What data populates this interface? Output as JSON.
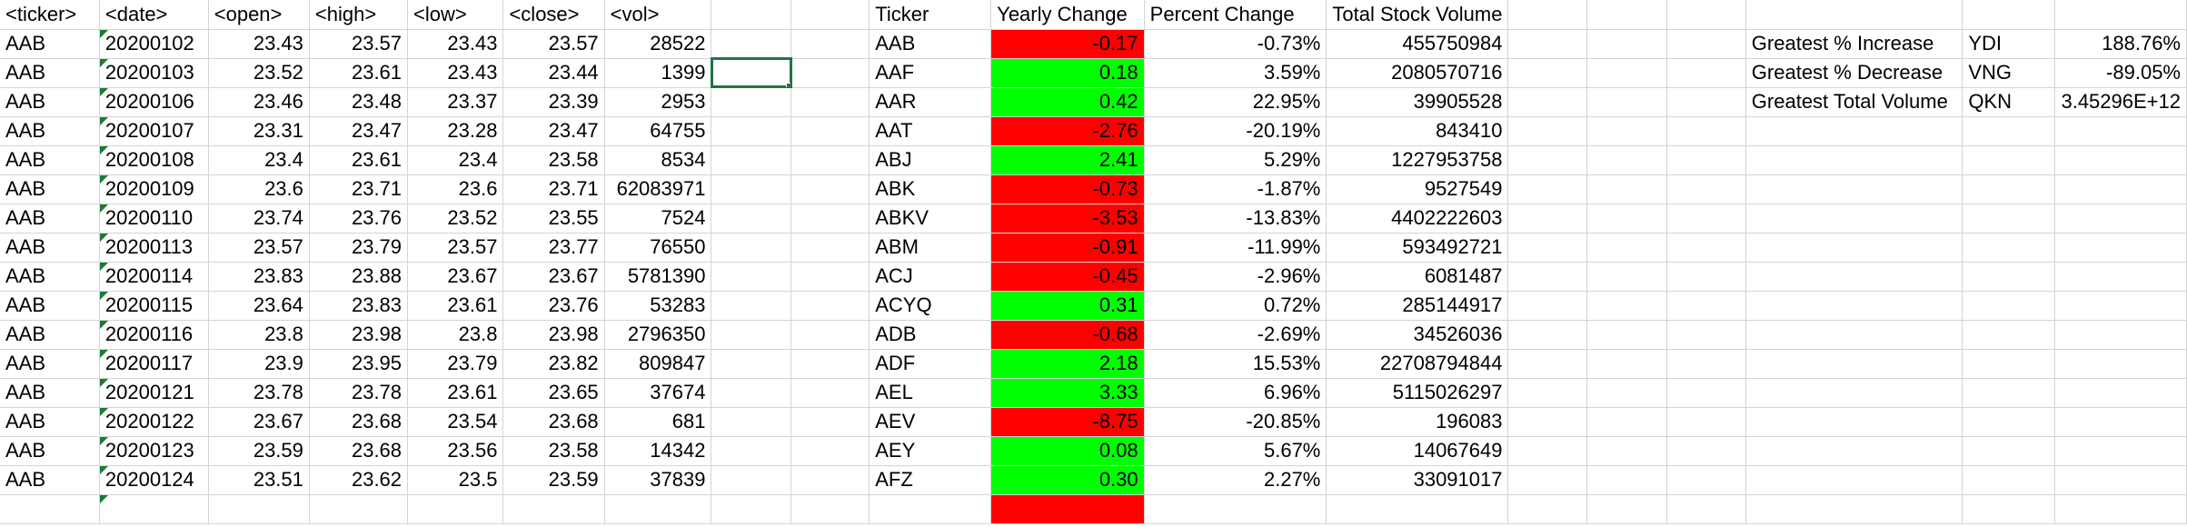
{
  "sheet": {
    "raw_headers": [
      "<ticker>",
      "<date>",
      "<open>",
      "<high>",
      "<low>",
      "<close>",
      "<vol>"
    ],
    "summary_headers": [
      "Ticker",
      "Yearly Change",
      "Percent Change",
      "Total Stock Volume"
    ],
    "rows": [
      {
        "raw": [
          "AAB",
          "20200102",
          "23.43",
          "23.57",
          "23.43",
          "23.57",
          "28522"
        ],
        "summary": [
          "AAB",
          "-0.17",
          "-0.73%",
          "455750984"
        ],
        "change_status": "negative"
      },
      {
        "raw": [
          "AAB",
          "20200103",
          "23.52",
          "23.61",
          "23.43",
          "23.44",
          "1399"
        ],
        "summary": [
          "AAF",
          "0.18",
          "3.59%",
          "2080570716"
        ],
        "change_status": "positive"
      },
      {
        "raw": [
          "AAB",
          "20200106",
          "23.46",
          "23.48",
          "23.37",
          "23.39",
          "2953"
        ],
        "summary": [
          "AAR",
          "0.42",
          "22.95%",
          "39905528"
        ],
        "change_status": "positive"
      },
      {
        "raw": [
          "AAB",
          "20200107",
          "23.31",
          "23.47",
          "23.28",
          "23.47",
          "64755"
        ],
        "summary": [
          "AAT",
          "-2.76",
          "-20.19%",
          "843410"
        ],
        "change_status": "negative"
      },
      {
        "raw": [
          "AAB",
          "20200108",
          "23.4",
          "23.61",
          "23.4",
          "23.58",
          "8534"
        ],
        "summary": [
          "ABJ",
          "2.41",
          "5.29%",
          "1227953758"
        ],
        "change_status": "positive"
      },
      {
        "raw": [
          "AAB",
          "20200109",
          "23.6",
          "23.71",
          "23.6",
          "23.71",
          "62083971"
        ],
        "summary": [
          "ABK",
          "-0.73",
          "-1.87%",
          "9527549"
        ],
        "change_status": "negative"
      },
      {
        "raw": [
          "AAB",
          "20200110",
          "23.74",
          "23.76",
          "23.52",
          "23.55",
          "7524"
        ],
        "summary": [
          "ABKV",
          "-3.53",
          "-13.83%",
          "4402222603"
        ],
        "change_status": "negative"
      },
      {
        "raw": [
          "AAB",
          "20200113",
          "23.57",
          "23.79",
          "23.57",
          "23.77",
          "76550"
        ],
        "summary": [
          "ABM",
          "-0.91",
          "-11.99%",
          "593492721"
        ],
        "change_status": "negative"
      },
      {
        "raw": [
          "AAB",
          "20200114",
          "23.83",
          "23.88",
          "23.67",
          "23.67",
          "5781390"
        ],
        "summary": [
          "ACJ",
          "-0.45",
          "-2.96%",
          "6081487"
        ],
        "change_status": "negative"
      },
      {
        "raw": [
          "AAB",
          "20200115",
          "23.64",
          "23.83",
          "23.61",
          "23.76",
          "53283"
        ],
        "summary": [
          "ACYQ",
          "0.31",
          "0.72%",
          "285144917"
        ],
        "change_status": "positive"
      },
      {
        "raw": [
          "AAB",
          "20200116",
          "23.8",
          "23.98",
          "23.8",
          "23.98",
          "2796350"
        ],
        "summary": [
          "ADB",
          "-0.68",
          "-2.69%",
          "34526036"
        ],
        "change_status": "negative"
      },
      {
        "raw": [
          "AAB",
          "20200117",
          "23.9",
          "23.95",
          "23.79",
          "23.82",
          "809847"
        ],
        "summary": [
          "ADF",
          "2.18",
          "15.53%",
          "22708794844"
        ],
        "change_status": "positive"
      },
      {
        "raw": [
          "AAB",
          "20200121",
          "23.78",
          "23.78",
          "23.61",
          "23.65",
          "37674"
        ],
        "summary": [
          "AEL",
          "3.33",
          "6.96%",
          "5115026297"
        ],
        "change_status": "positive"
      },
      {
        "raw": [
          "AAB",
          "20200122",
          "23.67",
          "23.68",
          "23.54",
          "23.68",
          "681"
        ],
        "summary": [
          "AEV",
          "-8.75",
          "-20.85%",
          "196083"
        ],
        "change_status": "negative"
      },
      {
        "raw": [
          "AAB",
          "20200123",
          "23.59",
          "23.68",
          "23.56",
          "23.58",
          "14342"
        ],
        "summary": [
          "AEY",
          "0.08",
          "5.67%",
          "14067649"
        ],
        "change_status": "positive"
      },
      {
        "raw": [
          "AAB",
          "20200124",
          "23.51",
          "23.62",
          "23.5",
          "23.59",
          "37839"
        ],
        "summary": [
          "AFZ",
          "0.30",
          "2.27%",
          "33091017"
        ],
        "change_status": "positive"
      },
      {
        "raw": [
          "",
          "",
          "",
          "",
          "",
          "",
          ""
        ],
        "summary": [
          "",
          "",
          "",
          ""
        ],
        "change_status": "negative"
      }
    ],
    "greatest": [
      {
        "label": "Greatest % Increase",
        "ticker": "YDI",
        "value": "188.76%"
      },
      {
        "label": "Greatest % Decrease",
        "ticker": "VNG",
        "value": "-89.05%"
      },
      {
        "label": "Greatest Total Volume",
        "ticker": "QKN",
        "value": "3.45296E+12"
      }
    ],
    "selected_cell": "H3",
    "colors": {
      "positive": "#00ff00",
      "negative": "#ff0000",
      "gridline": "#d4d4d4",
      "selection": "#217346",
      "error_indicator": "#1e7b34"
    },
    "error_indicator": "triangle-flag-icon"
  }
}
